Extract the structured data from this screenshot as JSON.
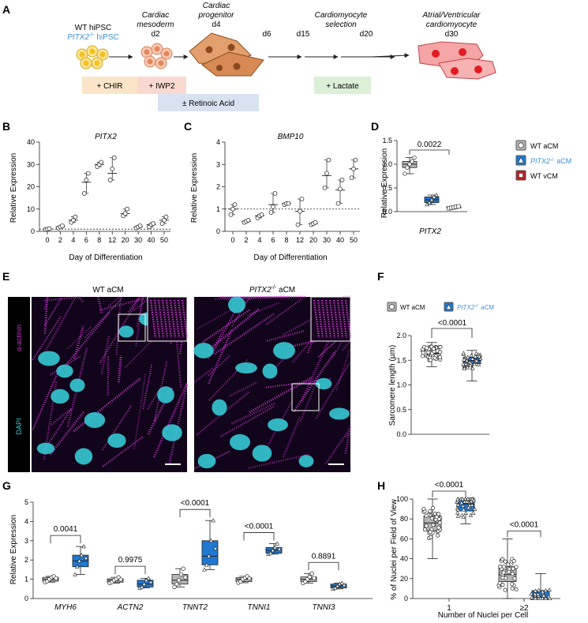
{
  "panel_letters": [
    "A",
    "B",
    "C",
    "D",
    "E",
    "F",
    "G",
    "H"
  ],
  "panelA": {
    "cells": [
      "WT hiPSC",
      "PITX2",
      "-/-",
      " hiPSC"
    ],
    "stages": [
      {
        "name": "Cardiac",
        "name2": "mesoderm",
        "day": "d2"
      },
      {
        "name": "Cardiac",
        "name2": "progenitor",
        "day": "d4"
      },
      {
        "name": "",
        "name2": "",
        "day": "d6"
      },
      {
        "name": "Cardiomyocyte",
        "name2": "selection",
        "day": "d15"
      },
      {
        "name": "",
        "name2": "",
        "day": "d20"
      },
      {
        "name": "Atrial/Ventricular",
        "name2": "cardiomyocyte",
        "day": "d30"
      }
    ],
    "treatments": [
      "+ CHIR",
      "+ IWP2",
      "± Retinoic Acid",
      "+ Lactate"
    ],
    "colors": {
      "chir": "#fbe5c8",
      "iwp2": "#f9d9cf",
      "ra": "#d9e2f1",
      "lactate": "#dcefd7",
      "ipsc": "#f4c21a",
      "meso": "#f2a07b",
      "prog": "#d4783f",
      "cm": "#f5a5a5",
      "nuc": "#e31b23"
    }
  },
  "colors": {
    "gray": "#b7b7b7",
    "blue": "#1f78d1",
    "red": "#b81e25",
    "wt_label": "#3b93d6",
    "magenta": "#c238c8",
    "cyan": "#35c9d4"
  },
  "legend": {
    "wt_acm": "WT aCM",
    "pitx2": "PITX2",
    "sup": "-/-",
    "acm": " aCM",
    "wt_vcm": "WT vCM"
  },
  "panelB": {
    "title": "PITX2",
    "ylabel": "Relative Expression",
    "xlabel": "Day of Differentiation",
    "yticks": [
      "0",
      "10",
      "20",
      "30",
      "40"
    ],
    "xticks": [
      "0",
      "2",
      "4",
      "6",
      "8",
      "12",
      "20",
      "30",
      "40",
      "50"
    ]
  },
  "panelC": {
    "title": "BMP10",
    "ylabel": "Relative Expression",
    "xlabel": "Day of Differentiation",
    "yticks": [
      "0",
      "1",
      "2",
      "3",
      "4"
    ],
    "xticks": [
      "0",
      "2",
      "4",
      "6",
      "8",
      "12",
      "20",
      "30",
      "40",
      "50"
    ]
  },
  "panelD": {
    "ylabel": "Relative Expression",
    "xlabel": "PITX2",
    "pvalue": "0.0022",
    "yticks": [
      "0.0",
      "0.5",
      "1.0",
      "1.5"
    ]
  },
  "panelE": {
    "left_title": "WT aCM",
    "right_title1": "PITX2",
    "right_sup": "-/-",
    "right_title2": " aCM",
    "stain1": "α-actinin",
    "stain2": "DAPI"
  },
  "panelF": {
    "ylabel": "Sarcomere length (µm)",
    "pvalue": "<0.0001",
    "yticks": [
      "0.0",
      "0.5",
      "1.0",
      "1.5",
      "2.0"
    ]
  },
  "panelG": {
    "ylabel": "Relative Expression",
    "yticks": [
      "0",
      "1",
      "2",
      "3",
      "4",
      "5"
    ],
    "genes": [
      "MYH6",
      "ACTN2",
      "TNNT2",
      "TNNI1",
      "TNNI3"
    ],
    "pvalues": [
      "0.0041",
      "0.9975",
      "<0.0001",
      "<0.0001",
      "0.8891"
    ]
  },
  "panelH": {
    "ylabel": "% of Nuclei per Field of View",
    "xlabel": "Number of Nuclei per Cell",
    "yticks": [
      "0",
      "20",
      "40",
      "60",
      "80",
      "100"
    ],
    "xticks": [
      "1",
      "≥2"
    ],
    "pvalues": [
      "<0.0001",
      "<0.0001"
    ]
  },
  "chart_data": [
    {
      "type": "scatter",
      "title": "PITX2",
      "xlabel": "Day of Differentiation",
      "ylabel": "Relative Expression",
      "categories": [
        "0",
        "2",
        "4",
        "6",
        "8",
        "12",
        "20",
        "30",
        "40",
        "50"
      ],
      "ylim": [
        0,
        40
      ],
      "means": [
        1,
        2,
        5,
        22,
        30,
        26,
        8,
        2,
        3,
        5
      ],
      "points": [
        [
          0.8,
          1,
          1.2
        ],
        [
          1.5,
          2,
          2.5
        ],
        [
          4,
          5,
          6.5
        ],
        [
          17,
          23,
          26
        ],
        [
          29,
          30,
          31
        ],
        [
          23,
          28,
          33
        ],
        [
          7,
          8,
          10
        ],
        [
          1.5,
          2,
          2.5
        ],
        [
          2,
          3,
          3.5
        ],
        [
          3.5,
          5,
          6.5
        ]
      ]
    },
    {
      "type": "scatter",
      "title": "BMP10",
      "xlabel": "Day of Differentiation",
      "ylabel": "Relative Expression",
      "categories": [
        "0",
        "2",
        "4",
        "6",
        "8",
        "12",
        "20",
        "30",
        "40",
        "50"
      ],
      "ylim": [
        0,
        4
      ],
      "means": [
        1,
        0.45,
        0.7,
        1.2,
        1.25,
        0.9,
        0.35,
        2.5,
        1.85,
        2.8
      ],
      "points": [
        [
          0.75,
          1,
          1.2
        ],
        [
          0.4,
          0.45,
          0.5
        ],
        [
          0.6,
          0.7,
          0.75
        ],
        [
          0.85,
          1.1,
          1.7
        ],
        [
          1.2,
          1.25,
          1.25
        ],
        [
          0.3,
          0.9,
          1.45
        ],
        [
          0.3,
          0.35,
          0.4
        ],
        [
          1.95,
          2.6,
          3.2
        ],
        [
          1.25,
          1.9,
          2.3
        ],
        [
          2.4,
          2.8,
          3.2
        ]
      ]
    },
    {
      "type": "box",
      "xlabel": "PITX2",
      "ylabel": "Relative Expression",
      "ylim": [
        0,
        1.5
      ],
      "groups": [
        {
          "name": "WT aCM",
          "q1": 0.93,
          "median": 1.0,
          "q3": 1.06,
          "min": 0.8,
          "max": 1.14
        },
        {
          "name": "PITX2-/- aCM",
          "q1": 0.19,
          "median": 0.25,
          "q3": 0.31,
          "min": 0.15,
          "max": 0.35
        },
        {
          "name": "WT vCM",
          "q1": 0.08,
          "median": 0.09,
          "q3": 0.1,
          "min": 0.07,
          "max": 0.11
        }
      ]
    },
    {
      "type": "box",
      "ylabel": "Sarcomere length (µm)",
      "ylim": [
        0,
        2.0
      ],
      "groups": [
        {
          "name": "WT aCM",
          "q1": 1.58,
          "median": 1.64,
          "q3": 1.7,
          "min": 1.37,
          "max": 1.86
        },
        {
          "name": "PITX2-/- aCM",
          "q1": 1.43,
          "median": 1.49,
          "q3": 1.56,
          "min": 1.08,
          "max": 1.7
        }
      ]
    },
    {
      "type": "box",
      "ylabel": "Relative Expression",
      "ylim": [
        0,
        5
      ],
      "categories": [
        "MYH6",
        "ACTN2",
        "TNNT2",
        "TNNI1",
        "TNNI3"
      ],
      "series": [
        {
          "name": "WT aCM",
          "boxes": [
            [
              0.9,
              1.0,
              1.1,
              0.85,
              1.15
            ],
            [
              0.85,
              0.95,
              1.02,
              0.8,
              1.1
            ],
            [
              0.75,
              0.95,
              1.25,
              0.6,
              1.55
            ],
            [
              0.88,
              1.0,
              1.08,
              0.82,
              1.15
            ],
            [
              0.88,
              1.0,
              1.12,
              0.8,
              1.3
            ]
          ]
        },
        {
          "name": "PITX2-/- aCM",
          "boxes": [
            [
              1.65,
              1.95,
              2.25,
              1.25,
              2.7
            ],
            [
              0.6,
              0.75,
              0.95,
              0.55,
              1.05
            ],
            [
              1.75,
              2.2,
              3.0,
              1.5,
              4.05
            ],
            [
              2.35,
              2.5,
              2.65,
              2.3,
              2.85
            ],
            [
              0.55,
              0.65,
              0.75,
              0.5,
              0.8
            ]
          ]
        }
      ]
    },
    {
      "type": "box",
      "xlabel": "Number of Nuclei per Cell",
      "ylabel": "% of Nuclei per Field of View",
      "ylim": [
        0,
        100
      ],
      "categories": [
        "1",
        "≥2"
      ],
      "series": [
        {
          "name": "WT aCM",
          "boxes": [
            [
              68,
              76,
              83,
              40,
              100
            ],
            [
              17,
              24,
              32,
              0,
              60
            ]
          ]
        },
        {
          "name": "PITX2-/- aCM",
          "boxes": [
            [
              88,
              95,
              100,
              75,
              100
            ],
            [
              0,
              0,
              8,
              0,
              25
            ]
          ]
        }
      ]
    }
  ]
}
